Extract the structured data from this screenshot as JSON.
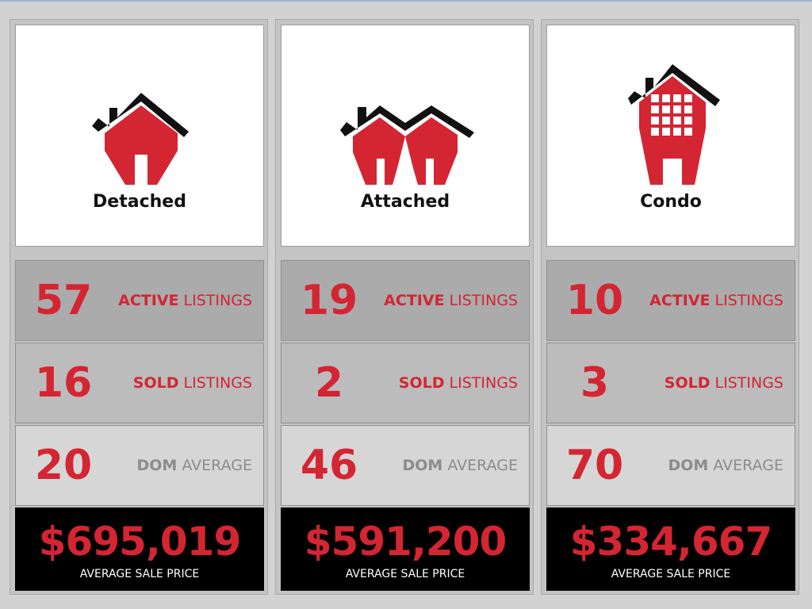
{
  "colors": {
    "accent": "#d42533",
    "price_bg": "#000000",
    "muted": "#8c8c8c"
  },
  "columns": [
    {
      "title": "Detached",
      "icon": "detached-house-icon",
      "active": {
        "value": "57",
        "label_bold": "ACTIVE",
        "label": " LISTINGS"
      },
      "sold": {
        "value": "16",
        "label_bold": "SOLD",
        "label": " LISTINGS"
      },
      "dom": {
        "value": "20",
        "label_bold": "DOM",
        "label": " AVERAGE"
      },
      "price": {
        "value": "$695,019",
        "label": "AVERAGE SALE PRICE"
      }
    },
    {
      "title": "Attached",
      "icon": "attached-house-icon",
      "active": {
        "value": "19",
        "label_bold": "ACTIVE",
        "label": " LISTINGS"
      },
      "sold": {
        "value": "2",
        "label_bold": "SOLD",
        "label": " LISTINGS"
      },
      "dom": {
        "value": "46",
        "label_bold": "DOM",
        "label": " AVERAGE"
      },
      "price": {
        "value": "$591,200",
        "label": "AVERAGE SALE PRICE"
      }
    },
    {
      "title": "Condo",
      "icon": "condo-building-icon",
      "active": {
        "value": "10",
        "label_bold": "ACTIVE",
        "label": " LISTINGS"
      },
      "sold": {
        "value": "3",
        "label_bold": "SOLD",
        "label": " LISTINGS"
      },
      "dom": {
        "value": "70",
        "label_bold": "DOM",
        "label": " AVERAGE"
      },
      "price": {
        "value": "$334,667",
        "label": "AVERAGE SALE PRICE"
      }
    }
  ]
}
